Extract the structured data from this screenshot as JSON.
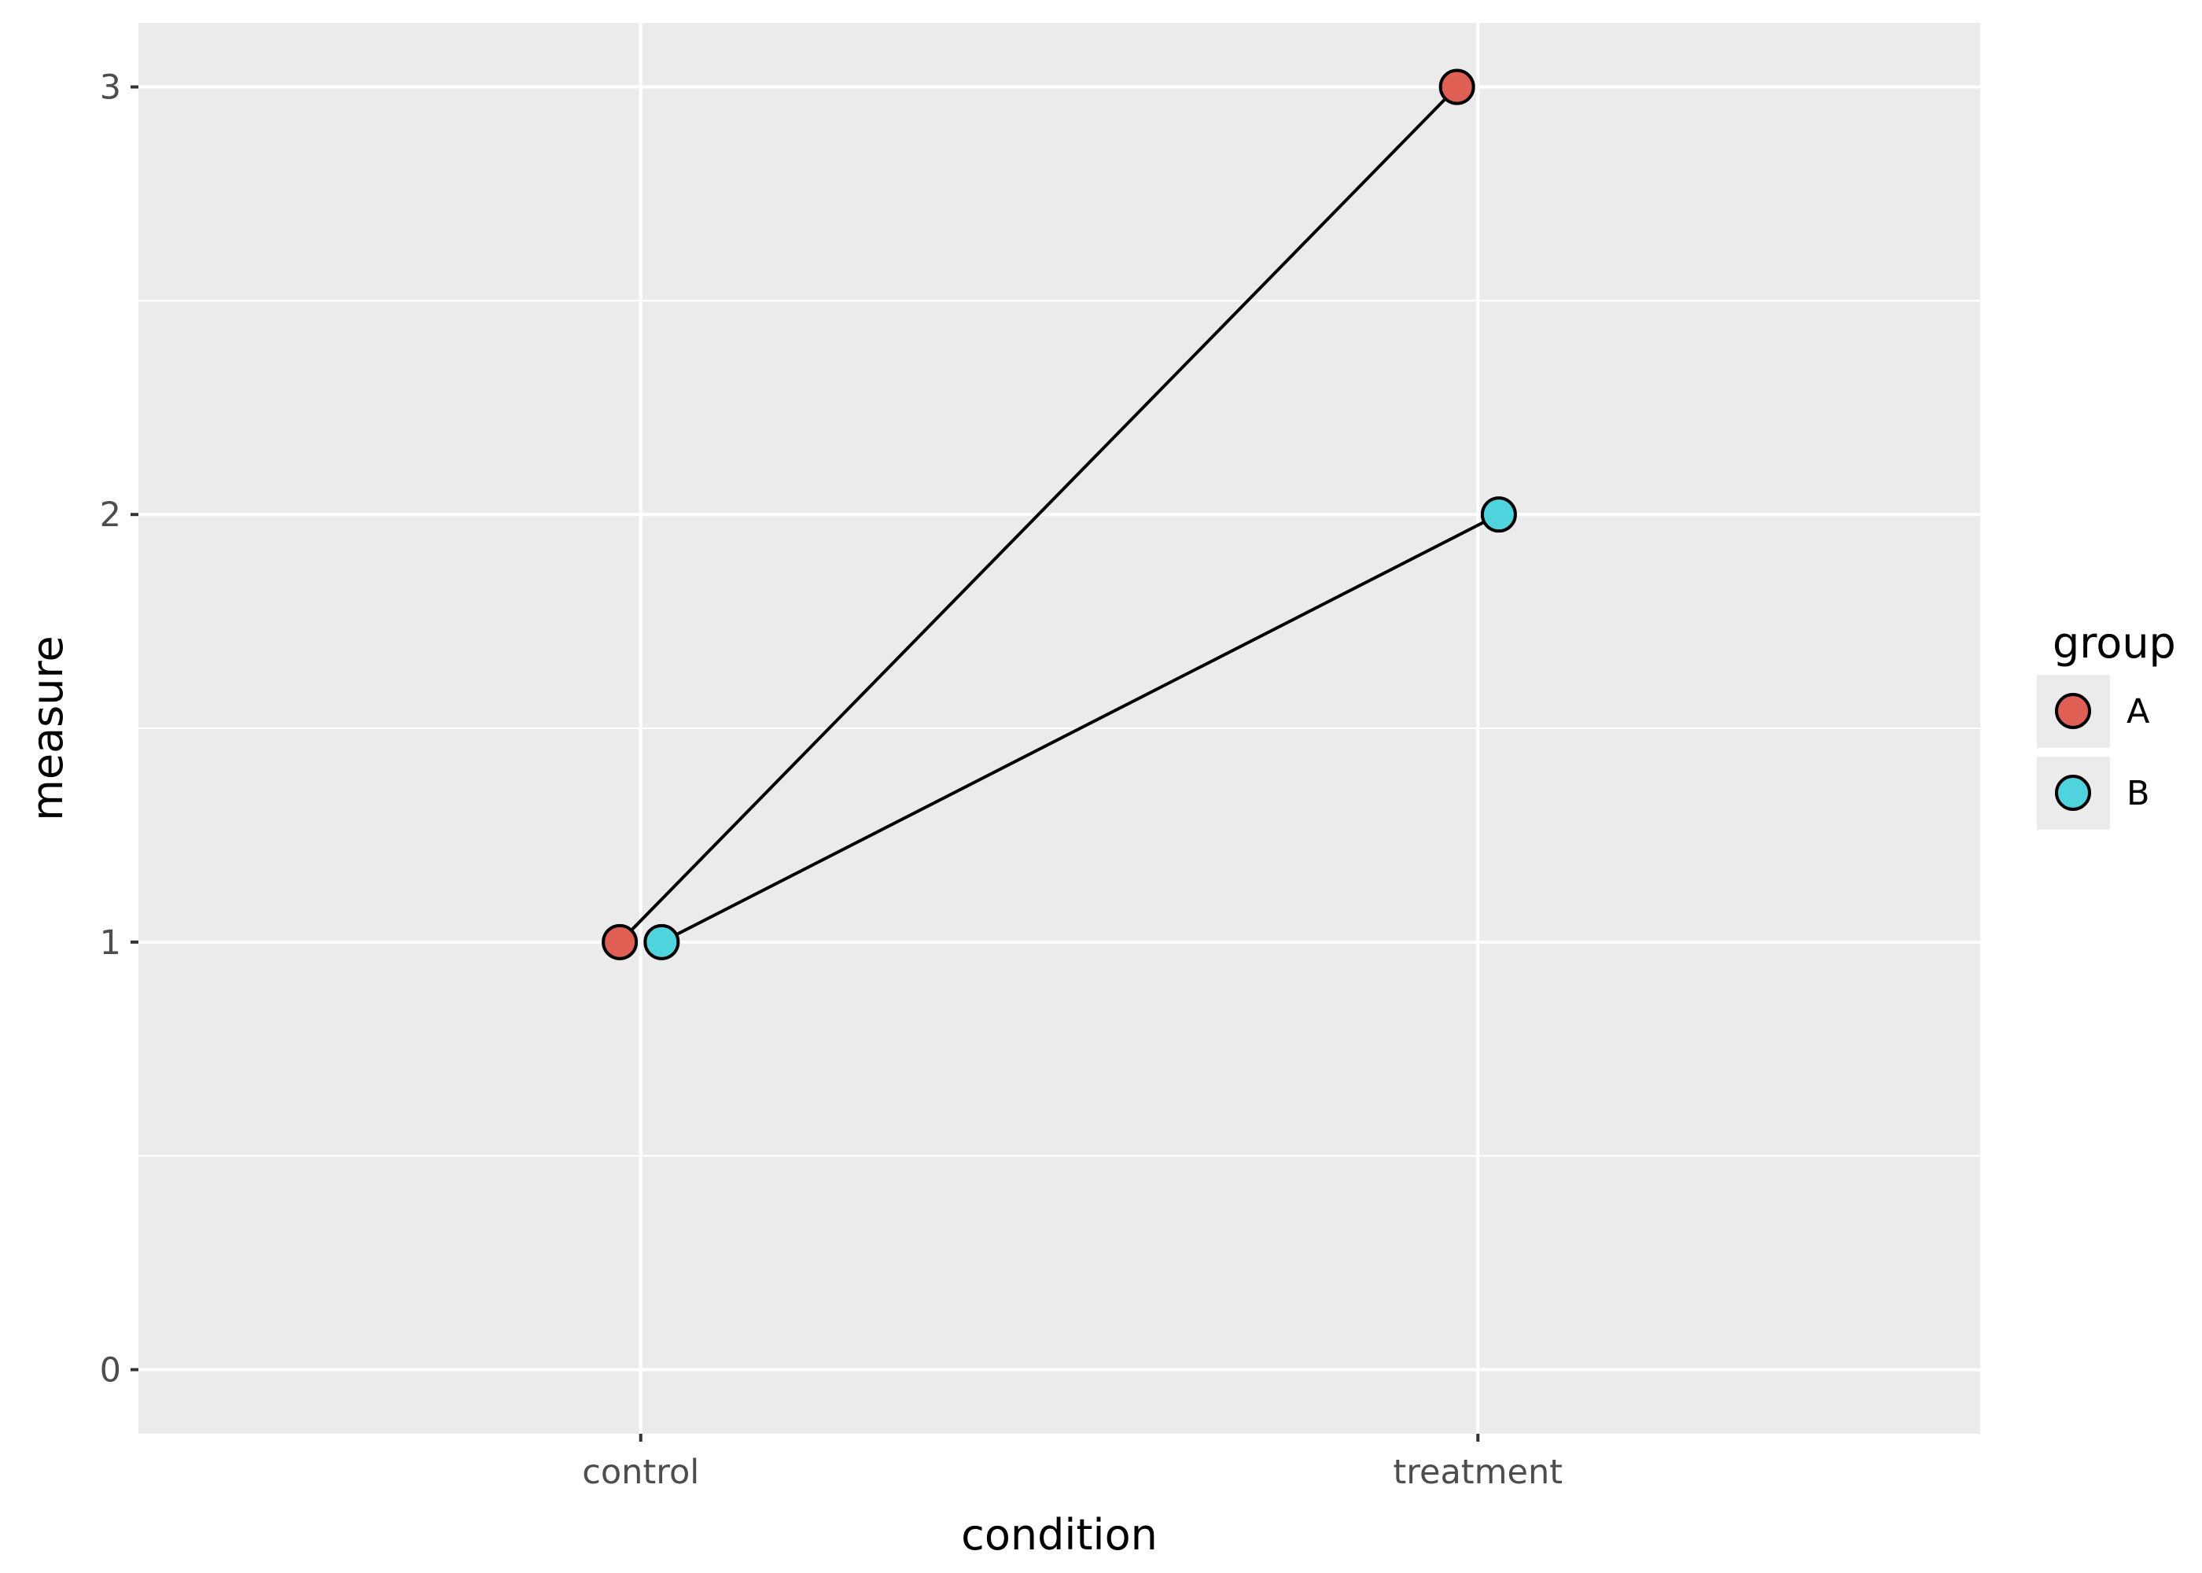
{
  "chart_data": {
    "type": "scatter",
    "xlabel": "condition",
    "ylabel": "measure",
    "categories": [
      "control",
      "treatment"
    ],
    "ylim": [
      -0.15,
      3.15
    ],
    "yticks": [
      0,
      1,
      2,
      3
    ],
    "grid": true,
    "legend": {
      "title": "group",
      "placement": "right",
      "entries": [
        "A",
        "B"
      ]
    },
    "series": [
      {
        "name": "A",
        "color": "#e05f55",
        "values": [
          1,
          3
        ]
      },
      {
        "name": "B",
        "color": "#4fd3dc",
        "values": [
          1,
          2
        ]
      }
    ],
    "connector_color": "#000000",
    "panel_color": "#ebebeb",
    "grid_color": "#ffffff"
  }
}
